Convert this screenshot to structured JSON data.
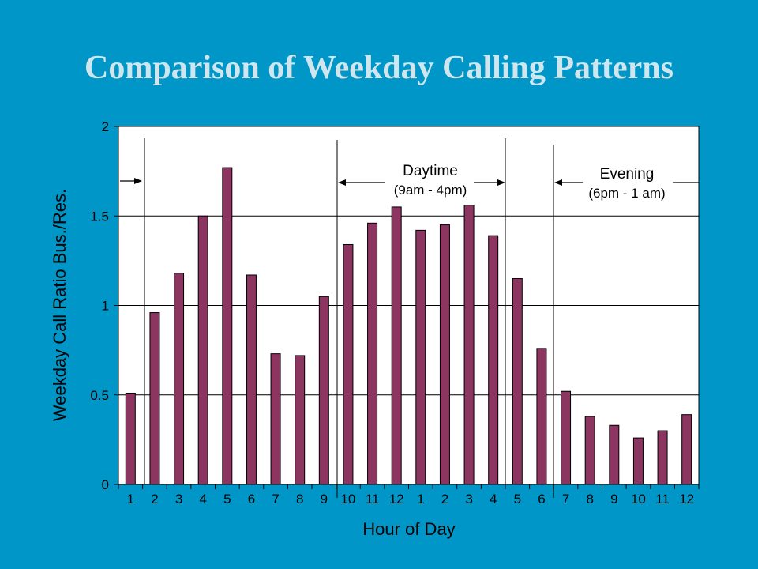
{
  "slide": {
    "title": "Comparison of Weekday Calling Patterns"
  },
  "chart_data": {
    "type": "bar",
    "title": "",
    "xlabel": "Hour of Day",
    "ylabel": "Weekday Call Ratio Bus./Res.",
    "ylim": [
      0,
      2
    ],
    "yticks": [
      0,
      0.5,
      1,
      1.5,
      2
    ],
    "ytick_labels": [
      "0",
      "0.5",
      "1",
      "1.5",
      "2"
    ],
    "grid": true,
    "categories": [
      "1",
      "2",
      "3",
      "4",
      "5",
      "6",
      "7",
      "8",
      "9",
      "10",
      "11",
      "12",
      "1",
      "2",
      "3",
      "4",
      "5",
      "6",
      "7",
      "8",
      "9",
      "10",
      "11",
      "12"
    ],
    "values": [
      0.51,
      0.96,
      1.18,
      1.5,
      1.77,
      1.17,
      0.73,
      0.72,
      1.05,
      1.34,
      1.46,
      1.55,
      1.42,
      1.45,
      1.56,
      1.39,
      1.15,
      0.76,
      0.52,
      0.38,
      0.33,
      0.26,
      0.3,
      0.39
    ],
    "bar_color": "#8b3560",
    "annotations": [
      {
        "title": "Daytime",
        "subtitle": "(9am - 4pm)"
      },
      {
        "title": "Evening",
        "subtitle": "(6pm - 1 am)"
      }
    ]
  }
}
